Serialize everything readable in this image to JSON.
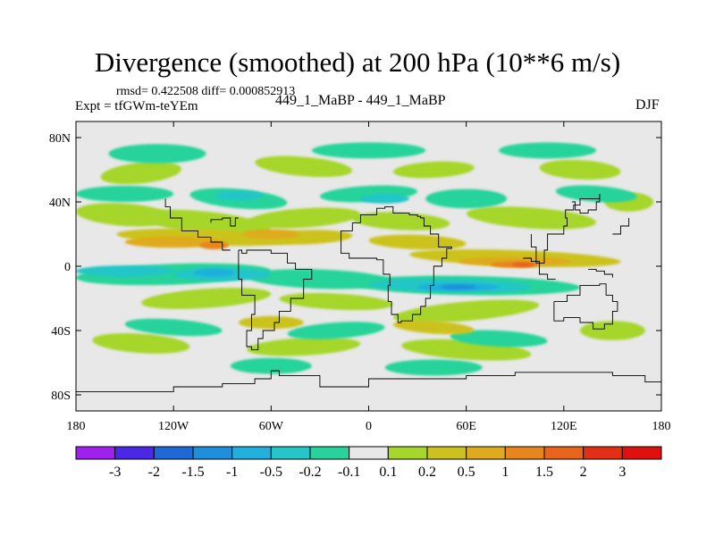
{
  "header": {
    "title": "Divergence (smoothed) at 200 hPa (10**6 m/s)",
    "stats": "rmsd= 0.422508 diff= 0.000852913",
    "experiment": "Expt = tfGWm-teYEm",
    "comparison": "449_1_MaBP - 449_1_MaBP",
    "season": "DJF"
  },
  "chart_data": {
    "type": "heatmap",
    "title": "Divergence (smoothed) at 200 hPa (10**6 m/s)",
    "xlabel": "",
    "ylabel": "",
    "xlim": [
      -180,
      180
    ],
    "ylim": [
      -90,
      90
    ],
    "x_ticks": [
      {
        "value": -180,
        "label": "180"
      },
      {
        "value": -120,
        "label": "120W"
      },
      {
        "value": -60,
        "label": "60W"
      },
      {
        "value": 0,
        "label": "0"
      },
      {
        "value": 60,
        "label": "60E"
      },
      {
        "value": 120,
        "label": "120E"
      },
      {
        "value": 180,
        "label": "180"
      }
    ],
    "y_ticks": [
      {
        "value": 80,
        "label": "80N"
      },
      {
        "value": 40,
        "label": "40N"
      },
      {
        "value": 0,
        "label": "0"
      },
      {
        "value": -40,
        "label": "40S"
      },
      {
        "value": -80,
        "label": "80S"
      }
    ],
    "background_color": "#e8e8e8",
    "contour_levels": [
      -3,
      -2,
      -1.5,
      -1,
      -0.5,
      -0.2,
      -0.1,
      0.1,
      0.2,
      0.5,
      1,
      1.5,
      2,
      3
    ],
    "colorbar": {
      "labels": [
        "-3",
        "-2",
        "-1.5",
        "-1",
        "-0.5",
        "-0.2",
        "-0.1",
        "0.1",
        "0.2",
        "0.5",
        "1",
        "1.5",
        "2",
        "3"
      ],
      "colors": [
        "#a020f0",
        "#4a28e6",
        "#1f69d6",
        "#1e8fdc",
        "#1fb0dd",
        "#24c6c8",
        "#27d39a",
        "#e8e8e8",
        "#a6d62a",
        "#ccc21e",
        "#dfaa1c",
        "#e8861c",
        "#e8641a",
        "#e23016",
        "#e01010"
      ]
    },
    "blobs": [
      {
        "lon": -150,
        "lat": 32,
        "w": 60,
        "h": 14,
        "level": 1,
        "rot": 4
      },
      {
        "lon": -100,
        "lat": 27,
        "w": 80,
        "h": 14,
        "level": 1,
        "rot": 6
      },
      {
        "lon": -40,
        "lat": 30,
        "w": 70,
        "h": 12,
        "level": 1,
        "rot": -4
      },
      {
        "lon": 20,
        "lat": 28,
        "w": 60,
        "h": 11,
        "level": 1,
        "rot": 3
      },
      {
        "lon": 100,
        "lat": 30,
        "w": 80,
        "h": 13,
        "level": 1,
        "rot": 4
      },
      {
        "lon": -140,
        "lat": 58,
        "w": 50,
        "h": 13,
        "level": 1,
        "rot": -6
      },
      {
        "lon": -40,
        "lat": 62,
        "w": 60,
        "h": 12,
        "level": 1,
        "rot": 5
      },
      {
        "lon": 40,
        "lat": 60,
        "w": 50,
        "h": 10,
        "level": 1,
        "rot": -3
      },
      {
        "lon": 130,
        "lat": 60,
        "w": 50,
        "h": 12,
        "level": 1,
        "rot": 3
      },
      {
        "lon": 160,
        "lat": 40,
        "w": 30,
        "h": 12,
        "level": 1,
        "rot": 0
      },
      {
        "lon": -100,
        "lat": -20,
        "w": 80,
        "h": 12,
        "level": 1,
        "rot": -4
      },
      {
        "lon": -20,
        "lat": -22,
        "w": 70,
        "h": 10,
        "level": 1,
        "rot": 3
      },
      {
        "lon": 60,
        "lat": -28,
        "w": 90,
        "h": 12,
        "level": 1,
        "rot": -5
      },
      {
        "lon": -140,
        "lat": -48,
        "w": 60,
        "h": 12,
        "level": 1,
        "rot": 4
      },
      {
        "lon": -40,
        "lat": -50,
        "w": 70,
        "h": 11,
        "level": 1,
        "rot": -3
      },
      {
        "lon": 60,
        "lat": -52,
        "w": 80,
        "h": 12,
        "level": 1,
        "rot": 4
      },
      {
        "lon": 150,
        "lat": -40,
        "w": 40,
        "h": 12,
        "level": 1,
        "rot": 0
      },
      {
        "lon": -100,
        "lat": 18,
        "w": 110,
        "h": 10,
        "level": 2,
        "rot": 2
      },
      {
        "lon": -40,
        "lat": 18,
        "w": 60,
        "h": 9,
        "level": 2,
        "rot": -2
      },
      {
        "lon": 30,
        "lat": 15,
        "w": 60,
        "h": 9,
        "level": 2,
        "rot": 2
      },
      {
        "lon": 90,
        "lat": 5,
        "w": 130,
        "h": 10,
        "level": 2,
        "rot": 2
      },
      {
        "lon": -60,
        "lat": -35,
        "w": 40,
        "h": 8,
        "level": 2,
        "rot": 0
      },
      {
        "lon": 40,
        "lat": -38,
        "w": 50,
        "h": 8,
        "level": 2,
        "rot": 4
      },
      {
        "lon": -120,
        "lat": 15,
        "w": 60,
        "h": 7,
        "level": 3,
        "rot": 0
      },
      {
        "lon": 90,
        "lat": 3,
        "w": 70,
        "h": 6,
        "level": 3,
        "rot": 0
      },
      {
        "lon": -60,
        "lat": 20,
        "w": 35,
        "h": 6,
        "level": 3,
        "rot": 0
      },
      {
        "lon": -95,
        "lat": 13,
        "w": 18,
        "h": 5,
        "level": 4,
        "rot": 0
      },
      {
        "lon": 90,
        "lat": 1,
        "w": 30,
        "h": 4,
        "level": 4,
        "rot": 0
      },
      {
        "lon": 95,
        "lat": 1,
        "w": 14,
        "h": 3,
        "level": 5,
        "rot": 0
      },
      {
        "lon": -150,
        "lat": 45,
        "w": 60,
        "h": 10,
        "level": -1,
        "rot": 0
      },
      {
        "lon": -80,
        "lat": 42,
        "w": 60,
        "h": 12,
        "level": -1,
        "rot": 5
      },
      {
        "lon": 0,
        "lat": 45,
        "w": 60,
        "h": 10,
        "level": -1,
        "rot": -3
      },
      {
        "lon": 60,
        "lat": 42,
        "w": 50,
        "h": 12,
        "level": -1,
        "rot": 0
      },
      {
        "lon": 140,
        "lat": 45,
        "w": 50,
        "h": 10,
        "level": -1,
        "rot": 4
      },
      {
        "lon": -130,
        "lat": 70,
        "w": 60,
        "h": 12,
        "level": -1,
        "rot": 0
      },
      {
        "lon": 0,
        "lat": 72,
        "w": 70,
        "h": 10,
        "level": -1,
        "rot": 0
      },
      {
        "lon": 110,
        "lat": 72,
        "w": 60,
        "h": 10,
        "level": -1,
        "rot": 0
      },
      {
        "lon": -120,
        "lat": -5,
        "w": 120,
        "h": 13,
        "level": -1,
        "rot": -2
      },
      {
        "lon": -30,
        "lat": -8,
        "w": 90,
        "h": 12,
        "level": -1,
        "rot": 2
      },
      {
        "lon": 60,
        "lat": -12,
        "w": 140,
        "h": 12,
        "level": -1,
        "rot": 1
      },
      {
        "lon": -120,
        "lat": -38,
        "w": 60,
        "h": 10,
        "level": -1,
        "rot": 4
      },
      {
        "lon": -20,
        "lat": -40,
        "w": 60,
        "h": 10,
        "level": -1,
        "rot": -4
      },
      {
        "lon": 80,
        "lat": -45,
        "w": 60,
        "h": 10,
        "level": -1,
        "rot": 3
      },
      {
        "lon": -60,
        "lat": -62,
        "w": 50,
        "h": 10,
        "level": -1,
        "rot": 0
      },
      {
        "lon": 40,
        "lat": -63,
        "w": 60,
        "h": 10,
        "level": -1,
        "rot": 0
      },
      {
        "lon": -150,
        "lat": -3,
        "w": 60,
        "h": 7,
        "level": -2,
        "rot": 0
      },
      {
        "lon": -90,
        "lat": -5,
        "w": 60,
        "h": 8,
        "level": -2,
        "rot": 0
      },
      {
        "lon": 50,
        "lat": -12,
        "w": 100,
        "h": 8,
        "level": -2,
        "rot": 1
      },
      {
        "lon": 10,
        "lat": 42,
        "w": 30,
        "h": 6,
        "level": -2,
        "rot": 0
      },
      {
        "lon": -80,
        "lat": 44,
        "w": 30,
        "h": 6,
        "level": -2,
        "rot": 0
      },
      {
        "lon": 55,
        "lat": -13,
        "w": 50,
        "h": 5,
        "level": -3,
        "rot": 0
      },
      {
        "lon": -95,
        "lat": -4,
        "w": 25,
        "h": 5,
        "level": -3,
        "rot": 0
      },
      {
        "lon": 55,
        "lat": -13,
        "w": 22,
        "h": 3,
        "level": -4,
        "rot": 0
      }
    ],
    "coastlines": [
      [
        [
          -10,
          27
        ],
        [
          -5,
          28
        ],
        [
          -5,
          32
        ],
        [
          5,
          36
        ],
        [
          10,
          37
        ],
        [
          15,
          33
        ],
        [
          25,
          32
        ],
        [
          30,
          31
        ],
        [
          32,
          30
        ],
        [
          34,
          25
        ],
        [
          38,
          20
        ],
        [
          43,
          12
        ],
        [
          51,
          11
        ],
        [
          48,
          5
        ],
        [
          45,
          0
        ],
        [
          40,
          -5
        ],
        [
          40,
          -12
        ],
        [
          38,
          -20
        ],
        [
          35,
          -25
        ],
        [
          32,
          -30
        ],
        [
          27,
          -34
        ],
        [
          20,
          -35
        ],
        [
          18,
          -30
        ],
        [
          14,
          -22
        ],
        [
          12,
          -12
        ],
        [
          13,
          -5
        ],
        [
          9,
          0
        ],
        [
          9,
          4
        ],
        [
          5,
          5
        ],
        [
          -5,
          5
        ],
        [
          -12,
          8
        ],
        [
          -17,
          15
        ],
        [
          -17,
          22
        ],
        [
          -10,
          27
        ]
      ],
      [
        [
          -80,
          10
        ],
        [
          -78,
          8
        ],
        [
          -75,
          10
        ],
        [
          -60,
          8
        ],
        [
          -50,
          2
        ],
        [
          -45,
          -2
        ],
        [
          -35,
          -8
        ],
        [
          -40,
          -20
        ],
        [
          -48,
          -28
        ],
        [
          -55,
          -35
        ],
        [
          -58,
          -40
        ],
        [
          -65,
          -45
        ],
        [
          -68,
          -52
        ],
        [
          -72,
          -50
        ],
        [
          -75,
          -40
        ],
        [
          -72,
          -30
        ],
        [
          -70,
          -18
        ],
        [
          -78,
          -8
        ],
        [
          -80,
          0
        ],
        [
          -80,
          10
        ]
      ],
      [
        [
          -85,
          10
        ],
        [
          -90,
          15
        ],
        [
          -97,
          18
        ],
        [
          -105,
          22
        ],
        [
          -115,
          30
        ],
        [
          -122,
          37
        ],
        [
          -125,
          42
        ]
      ],
      [
        [
          -80,
          30
        ],
        [
          -82,
          25
        ],
        [
          -85,
          30
        ],
        [
          -90,
          29
        ],
        [
          -97,
          27
        ]
      ],
      [
        [
          114,
          -22
        ],
        [
          122,
          -18
        ],
        [
          130,
          -12
        ],
        [
          137,
          -12
        ],
        [
          142,
          -11
        ],
        [
          146,
          -18
        ],
        [
          150,
          -22
        ],
        [
          153,
          -28
        ],
        [
          150,
          -36
        ],
        [
          145,
          -39
        ],
        [
          138,
          -35
        ],
        [
          130,
          -32
        ],
        [
          120,
          -34
        ],
        [
          115,
          -34
        ],
        [
          114,
          -22
        ]
      ],
      [
        [
          95,
          5
        ],
        [
          100,
          3
        ],
        [
          105,
          -5
        ],
        [
          110,
          -8
        ],
        [
          115,
          -8
        ]
      ],
      [
        [
          100,
          20
        ],
        [
          100,
          12
        ],
        [
          103,
          2
        ],
        [
          108,
          10
        ],
        [
          110,
          20
        ],
        [
          120,
          25
        ],
        [
          122,
          30
        ],
        [
          121,
          35
        ],
        [
          126,
          38
        ],
        [
          130,
          42
        ],
        [
          142,
          45
        ]
      ],
      [
        [
          125,
          40
        ],
        [
          127,
          35
        ],
        [
          130,
          33
        ],
        [
          135,
          35
        ],
        [
          140,
          40
        ],
        [
          142,
          45
        ]
      ],
      [
        [
          -180,
          -78
        ],
        [
          -150,
          -78
        ],
        [
          -120,
          -75
        ],
        [
          -90,
          -73
        ],
        [
          -70,
          -70
        ],
        [
          -60,
          -65
        ],
        [
          -55,
          -68
        ],
        [
          -30,
          -75
        ],
        [
          0,
          -70
        ],
        [
          30,
          -70
        ],
        [
          60,
          -68
        ],
        [
          90,
          -66
        ],
        [
          120,
          -66
        ],
        [
          150,
          -68
        ],
        [
          170,
          -72
        ],
        [
          180,
          -78
        ]
      ],
      [
        [
          -180,
          -90
        ],
        [
          -180,
          -78
        ]
      ],
      [
        [
          180,
          -90
        ],
        [
          180,
          -78
        ]
      ],
      [
        [
          150,
          20
        ],
        [
          155,
          25
        ],
        [
          160,
          30
        ]
      ],
      [
        [
          135,
          -2
        ],
        [
          140,
          -3
        ],
        [
          145,
          -5
        ],
        [
          150,
          -7
        ]
      ]
    ]
  }
}
